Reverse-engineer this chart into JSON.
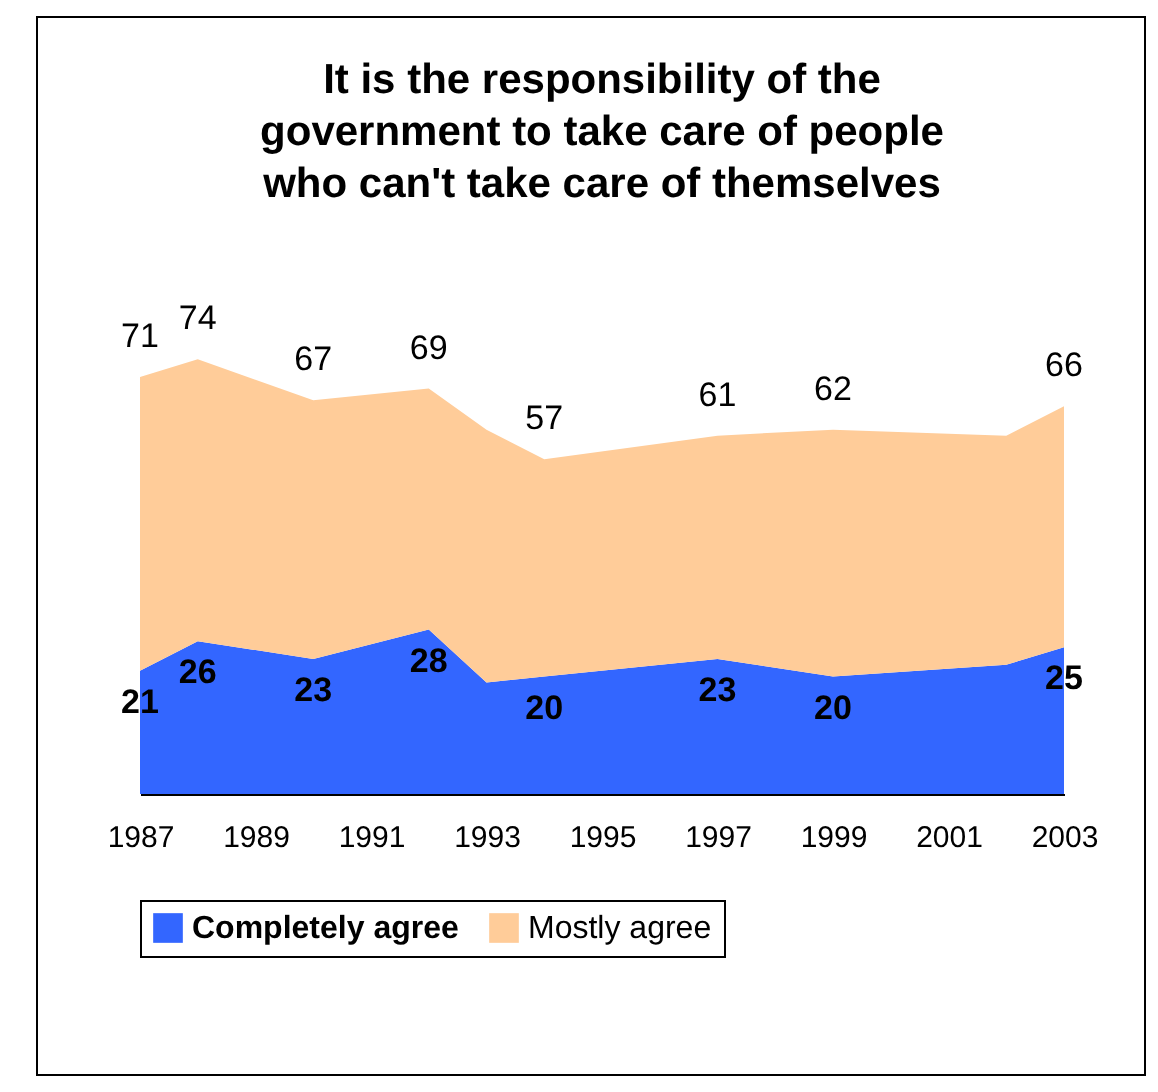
{
  "chart_data": {
    "type": "area",
    "stacked": true,
    "title": "It is the responsibility of the government to take care of people who can't take care of themselves",
    "x": [
      1987,
      1988,
      1990,
      1992,
      1993,
      1994,
      1997,
      1999,
      2002,
      2003
    ],
    "xlim": [
      1987,
      2003
    ],
    "xticks": [
      1987,
      1989,
      1991,
      1993,
      1995,
      1997,
      1999,
      2001,
      2003
    ],
    "series": [
      {
        "name": "Completely agree",
        "color": "#3366ff",
        "values": [
          21,
          26,
          23,
          28,
          19,
          20,
          23,
          20,
          22,
          25
        ],
        "value_labels": [
          "21",
          "26",
          "23",
          "28",
          null,
          "20",
          "23",
          "20",
          null,
          "25"
        ]
      },
      {
        "name": "Mostly agree",
        "color": "#ffcc99",
        "values": [
          50,
          48,
          44,
          41,
          43,
          37,
          38,
          42,
          39,
          41
        ]
      }
    ],
    "totals": [
      "71",
      "74",
      "67",
      "69",
      null,
      "57",
      "61",
      "62",
      null,
      "66"
    ],
    "legend": "bottom",
    "grid": false
  }
}
